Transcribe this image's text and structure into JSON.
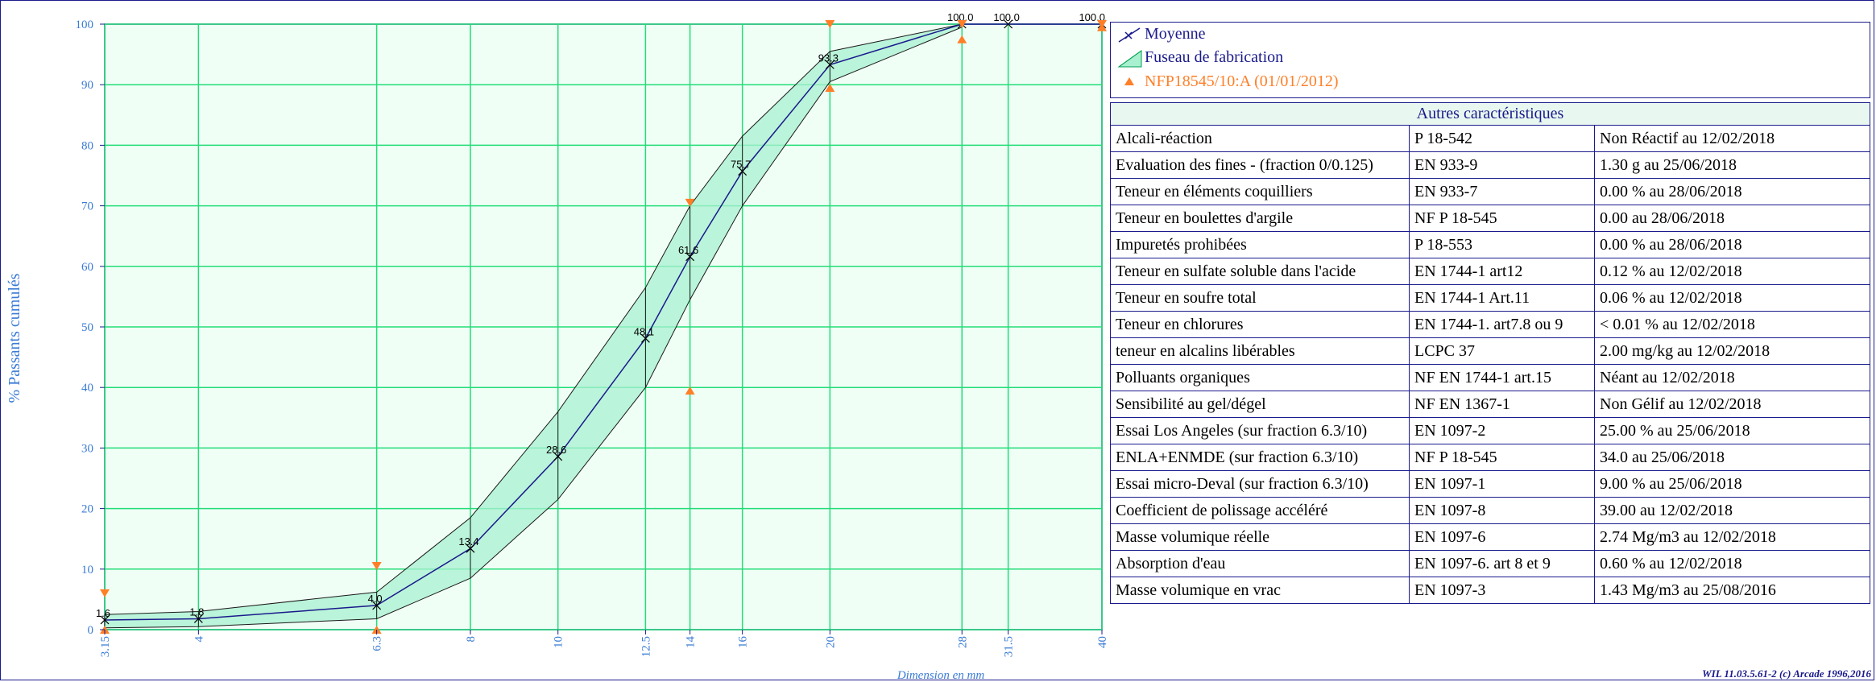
{
  "chart_data": {
    "type": "line",
    "x_scale": "log",
    "xlabel": "Dimension en mm",
    "ylabel": "% Passants cumulés",
    "x_ticks": [
      "3.15",
      "4",
      "6.3",
      "8",
      "10",
      "12.5",
      "14",
      "16",
      "20",
      "28",
      "31.5",
      "40"
    ],
    "x_tick_values": [
      3.15,
      4,
      6.3,
      8,
      10,
      12.5,
      14,
      16,
      20,
      28,
      31.5,
      40
    ],
    "y_ticks": [
      0,
      10,
      20,
      30,
      40,
      50,
      60,
      70,
      80,
      90,
      100
    ],
    "ylim": [
      0,
      100
    ],
    "grid": true,
    "series": [
      {
        "name": "Moyenne",
        "color": "#1a1a8c",
        "x": [
          3.15,
          4,
          6.3,
          8,
          10,
          12.5,
          14,
          16,
          20,
          28,
          31.5,
          40
        ],
        "values": [
          1.6,
          1.8,
          4.0,
          13.4,
          28.6,
          48.1,
          61.6,
          75.7,
          93.3,
          100.0,
          100.0,
          100.0
        ],
        "labels": [
          "1.6",
          "1.8",
          "4.0",
          "13.4",
          "28.6",
          "48.1",
          "61.6",
          "75.7",
          "93.3",
          "100.0",
          "100.0",
          "100.0"
        ]
      },
      {
        "name": "Fuseau de fabrication",
        "color": "#00c060",
        "fill": "#a8f0d0",
        "x": [
          3.15,
          4,
          6.3,
          8,
          10,
          12.5,
          14,
          16,
          20,
          28
        ],
        "upper": [
          2.5,
          3.0,
          6.2,
          18.5,
          36.0,
          56.5,
          70.0,
          81.5,
          95.5,
          100.0
        ],
        "lower": [
          0.3,
          0.5,
          1.8,
          8.5,
          21.5,
          40.0,
          54.5,
          70.0,
          90.5,
          99.5
        ]
      },
      {
        "name": "NFP18545/10:A (01/01/2012)",
        "color": "#ff7f27",
        "points": [
          {
            "x": 3.15,
            "y": 6,
            "dir": "down"
          },
          {
            "x": 3.15,
            "y": 0,
            "dir": "up"
          },
          {
            "x": 6.3,
            "y": 10.5,
            "dir": "down"
          },
          {
            "x": 6.3,
            "y": 0,
            "dir": "up"
          },
          {
            "x": 14,
            "y": 70.5,
            "dir": "down"
          },
          {
            "x": 14,
            "y": 39.5,
            "dir": "up"
          },
          {
            "x": 20,
            "y": 100,
            "dir": "down"
          },
          {
            "x": 20,
            "y": 89.5,
            "dir": "up"
          },
          {
            "x": 28,
            "y": 100,
            "dir": "down"
          },
          {
            "x": 28,
            "y": 97.5,
            "dir": "up"
          },
          {
            "x": 40,
            "y": 100,
            "dir": "down"
          },
          {
            "x": 40,
            "y": 99.5,
            "dir": "up"
          }
        ]
      }
    ]
  },
  "legend": {
    "items": [
      "Moyenne",
      "Fuseau de fabrication",
      "NFP18545/10:A (01/01/2012)"
    ]
  },
  "table": {
    "title": "Autres caractéristiques",
    "rows": [
      [
        "Alcali-réaction",
        "P 18-542",
        "Non Réactif au 12/02/2018"
      ],
      [
        "Evaluation des fines - (fraction 0/0.125)",
        "EN 933-9",
        "1.30 g  au 25/06/2018"
      ],
      [
        "Teneur en éléments coquilliers",
        "EN 933-7",
        "0.00 %  au 28/06/2018"
      ],
      [
        "Teneur en boulettes d'argile",
        "NF P 18-545",
        "0.00   au 28/06/2018"
      ],
      [
        "Impuretés prohibées",
        "P 18-553",
        "0.00 %  au 28/06/2018"
      ],
      [
        "Teneur en sulfate soluble dans l'acide",
        "EN 1744-1 art12",
        "0.12 %  au 12/02/2018"
      ],
      [
        "Teneur en soufre total",
        "EN 1744-1 Art.11",
        "0.06 %  au 12/02/2018"
      ],
      [
        "Teneur en chlorures",
        "EN 1744-1. art7.8 ou 9",
        "< 0.01 %  au 12/02/2018"
      ],
      [
        "teneur en alcalins libérables",
        "LCPC 37",
        "2.00 mg/kg  au 12/02/2018"
      ],
      [
        "Polluants organiques",
        "NF EN 1744-1 art.15",
        "Néant  au 12/02/2018"
      ],
      [
        "Sensibilité au gel/dégel",
        "NF EN 1367-1",
        "Non Gélif au 12/02/2018"
      ],
      [
        "Essai Los Angeles (sur fraction 6.3/10)",
        "EN 1097-2",
        "25.00 %  au 25/06/2018"
      ],
      [
        "ENLA+ENMDE (sur fraction 6.3/10)",
        "NF P 18-545",
        "34.0   au 25/06/2018"
      ],
      [
        "Essai micro-Deval (sur fraction 6.3/10)",
        "EN 1097-1",
        "9.00 %  au 25/06/2018"
      ],
      [
        "Coefficient de polissage accéléré",
        "EN 1097-8",
        "39.00   au 12/02/2018"
      ],
      [
        "Masse volumique réelle",
        "EN 1097-6",
        "2.74 Mg/m3  au 12/02/2018"
      ],
      [
        "Absorption d'eau",
        "EN 1097-6. art 8 et 9",
        "0.60 %  au 12/02/2018"
      ],
      [
        "Masse volumique en vrac",
        "EN 1097-3",
        "1.43 Mg/m3  au 25/08/2016"
      ]
    ]
  },
  "footer": "WIL 11.03.5.61-2 (c) Arcade 1996,2016"
}
